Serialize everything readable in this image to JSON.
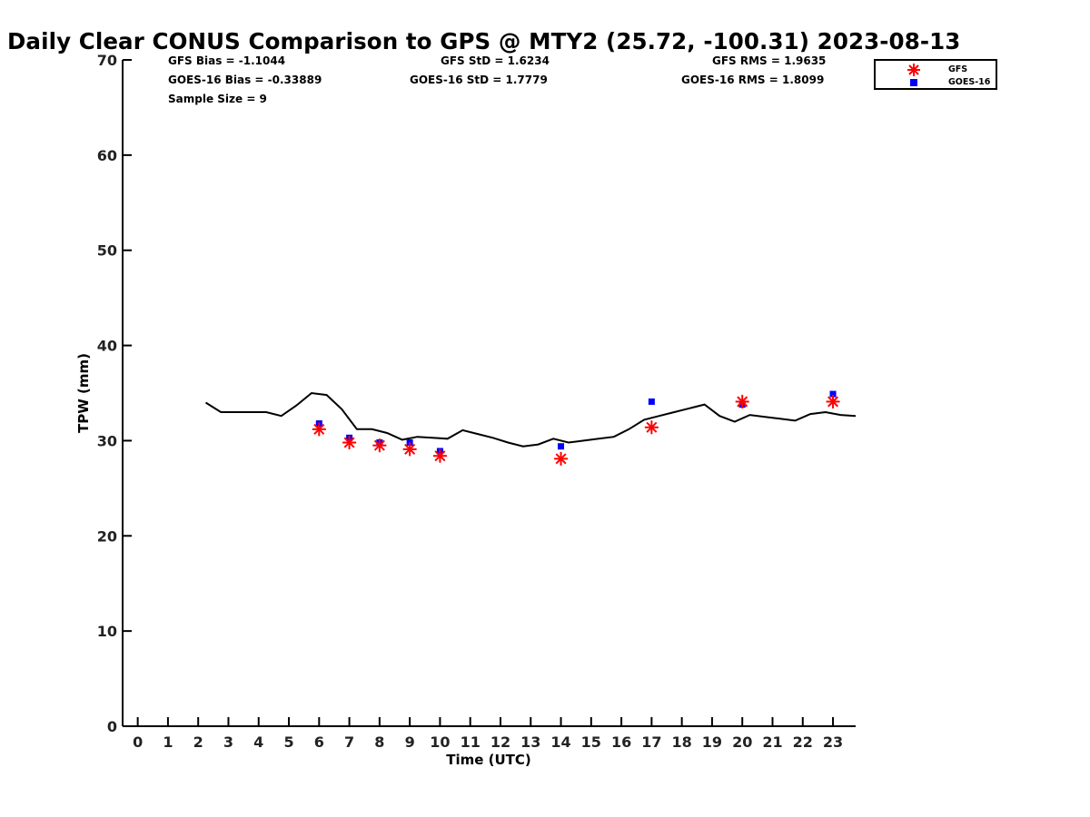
{
  "chart_data": {
    "type": "scatter",
    "title": "Daily Clear CONUS Comparison to GPS @ MTY2 (25.72, -100.31) 2023-08-13",
    "xlabel": "Time (UTC)",
    "ylabel": "TPW (mm)",
    "xlim": [
      -0.5,
      23.75
    ],
    "ylim": [
      0,
      70
    ],
    "x_ticks": [
      0,
      1,
      2,
      3,
      4,
      5,
      6,
      7,
      8,
      9,
      10,
      11,
      12,
      13,
      14,
      15,
      16,
      17,
      18,
      19,
      20,
      21,
      22,
      23
    ],
    "y_ticks": [
      0,
      10,
      20,
      30,
      40,
      50,
      60,
      70
    ],
    "grid": false,
    "legend_position": "top-right",
    "stats": {
      "gfs_bias": "GFS Bias = -1.1044",
      "goes_bias": "GOES-16 Bias = -0.33889",
      "sample_size": "Sample Size = 9",
      "gfs_std": "GFS StD = 1.6234",
      "goes_std": "GOES-16 StD = 1.7779",
      "gfs_rms": "GFS RMS = 1.9635",
      "goes_rms": "GOES-16 RMS = 1.8099"
    },
    "series": [
      {
        "name": "GPS",
        "kind": "line",
        "color": "#000000",
        "x": [
          2.25,
          2.75,
          3.25,
          3.75,
          4.25,
          4.75,
          5.25,
          5.75,
          6.25,
          6.75,
          7.25,
          7.75,
          8.25,
          8.75,
          9.25,
          9.75,
          10.25,
          10.75,
          11.25,
          11.75,
          12.25,
          12.75,
          13.25,
          13.75,
          14.25,
          14.75,
          15.25,
          15.75,
          16.25,
          16.75,
          17.25,
          17.75,
          18.25,
          18.75,
          19.25,
          19.75,
          20.25,
          20.75,
          21.25,
          21.75,
          22.25,
          22.75,
          23.25,
          23.75
        ],
        "y": [
          34.0,
          33.0,
          33.0,
          33.0,
          33.0,
          32.6,
          33.7,
          35.0,
          34.8,
          33.3,
          31.2,
          31.2,
          30.8,
          30.1,
          30.4,
          30.3,
          30.2,
          31.1,
          30.7,
          30.3,
          29.8,
          29.4,
          29.6,
          30.2,
          29.8,
          30.0,
          30.2,
          30.4,
          31.2,
          32.2,
          32.6,
          33.0,
          33.4,
          33.8,
          32.6,
          32.0,
          32.7,
          32.5,
          32.3,
          32.1,
          32.8,
          33.0,
          32.7,
          32.6
        ]
      },
      {
        "name": "GFS",
        "kind": "marker",
        "marker": "asterisk",
        "color": "#ff0000",
        "x": [
          6,
          7,
          8,
          9,
          10,
          14,
          17,
          20,
          23
        ],
        "y": [
          31.2,
          29.8,
          29.5,
          29.1,
          28.4,
          28.1,
          31.4,
          34.1,
          34.1
        ]
      },
      {
        "name": "GOES-16",
        "kind": "marker",
        "marker": "square",
        "color": "#0000ff",
        "x": [
          6,
          7,
          8,
          9,
          10,
          14,
          17,
          20,
          23
        ],
        "y": [
          31.8,
          30.3,
          29.8,
          29.8,
          28.9,
          29.4,
          34.1,
          33.8,
          34.9
        ]
      }
    ]
  }
}
